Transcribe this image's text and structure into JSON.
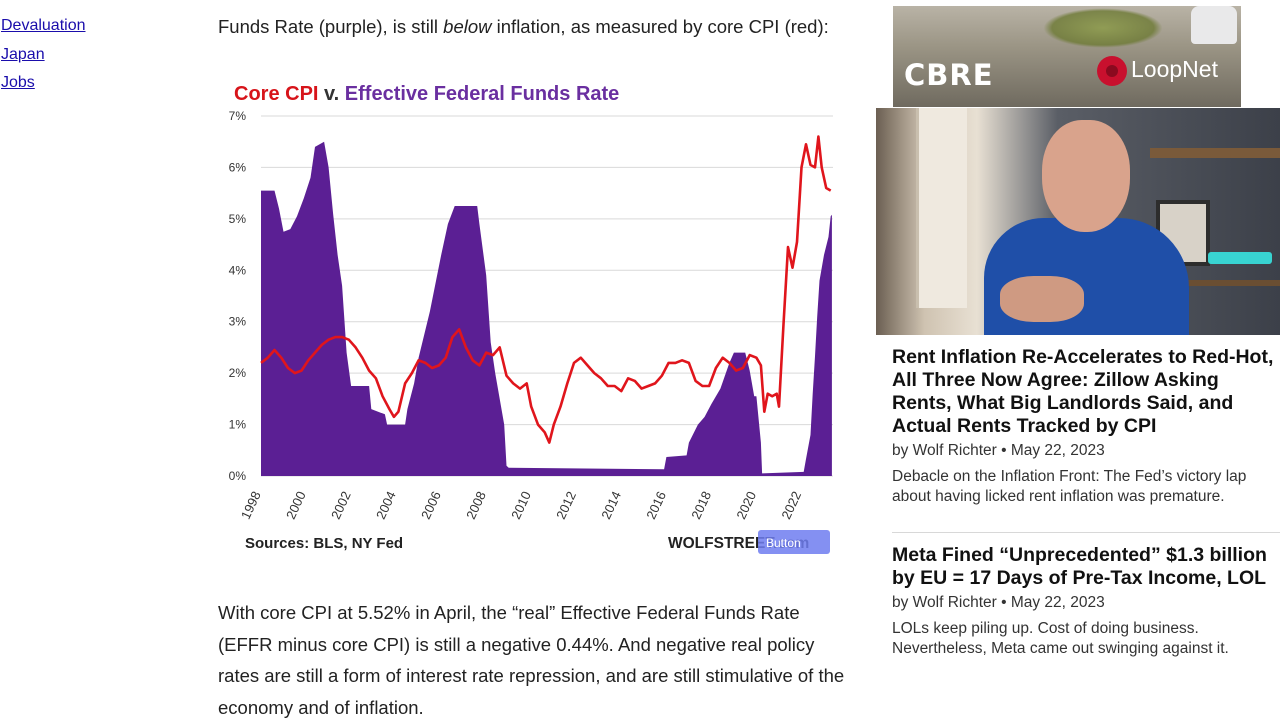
{
  "sidebar": {
    "links": [
      "Devaluation",
      "Japan",
      "Jobs"
    ]
  },
  "article": {
    "lead_before": "Funds Rate (purple), is still ",
    "lead_em": "below",
    "lead_after": " inflation, as measured by core CPI (red):",
    "paragraph": "With core CPI at 5.52% in April, the “real” Effective Federal Funds Rate (EFFR minus core CPI) is still a negative 0.44%. And negative real policy rates are still a form of interest rate repression, and are still stimulative of the economy and of inflation."
  },
  "chart_data": {
    "type": "line",
    "title_parts": [
      {
        "text": "Core CPI",
        "color": "#d7141a"
      },
      {
        "text": " v. ",
        "color": "#333333"
      },
      {
        "text": "Effective Federal Funds Rate",
        "color": "#6a2fa0"
      }
    ],
    "ylim": [
      0,
      7
    ],
    "yticks": [
      "0%",
      "1%",
      "2%",
      "3%",
      "4%",
      "5%",
      "6%",
      "7%"
    ],
    "xlim": [
      1998,
      2023.4
    ],
    "xticks": [
      "1998",
      "2000",
      "2002",
      "2004",
      "2006",
      "2008",
      "2010",
      "2012",
      "2014",
      "2016",
      "2018",
      "2020",
      "2022"
    ],
    "sources": "Sources: BLS, NY Fed",
    "brand": "WOLFSTREET.com",
    "button_label": "Button",
    "series": [
      {
        "name": "Effective Federal Funds Rate",
        "kind": "area",
        "color": "#5b1f94",
        "points": [
          [
            1998.0,
            5.55
          ],
          [
            1998.6,
            5.55
          ],
          [
            1998.8,
            5.2
          ],
          [
            1999.0,
            4.75
          ],
          [
            1999.3,
            4.8
          ],
          [
            1999.6,
            5.05
          ],
          [
            1999.9,
            5.4
          ],
          [
            2000.2,
            5.8
          ],
          [
            2000.4,
            6.4
          ],
          [
            2000.8,
            6.5
          ],
          [
            2001.0,
            6.0
          ],
          [
            2001.2,
            5.1
          ],
          [
            2001.4,
            4.3
          ],
          [
            2001.6,
            3.7
          ],
          [
            2001.8,
            2.4
          ],
          [
            2002.0,
            1.75
          ],
          [
            2002.8,
            1.75
          ],
          [
            2002.9,
            1.3
          ],
          [
            2003.5,
            1.2
          ],
          [
            2003.6,
            1.0
          ],
          [
            2004.4,
            1.0
          ],
          [
            2004.5,
            1.3
          ],
          [
            2004.8,
            1.8
          ],
          [
            2005.0,
            2.3
          ],
          [
            2005.5,
            3.2
          ],
          [
            2006.0,
            4.3
          ],
          [
            2006.3,
            4.9
          ],
          [
            2006.6,
            5.25
          ],
          [
            2007.6,
            5.25
          ],
          [
            2007.7,
            4.9
          ],
          [
            2008.0,
            3.9
          ],
          [
            2008.2,
            2.6
          ],
          [
            2008.4,
            2.0
          ],
          [
            2008.8,
            1.0
          ],
          [
            2008.9,
            0.2
          ],
          [
            2009.0,
            0.16
          ],
          [
            2015.9,
            0.13
          ],
          [
            2016.0,
            0.37
          ],
          [
            2016.9,
            0.4
          ],
          [
            2017.0,
            0.65
          ],
          [
            2017.4,
            1.0
          ],
          [
            2017.7,
            1.15
          ],
          [
            2018.0,
            1.4
          ],
          [
            2018.4,
            1.7
          ],
          [
            2018.8,
            2.2
          ],
          [
            2019.0,
            2.4
          ],
          [
            2019.5,
            2.4
          ],
          [
            2019.7,
            2.05
          ],
          [
            2019.9,
            1.55
          ],
          [
            2020.0,
            1.55
          ],
          [
            2020.2,
            0.65
          ],
          [
            2020.25,
            0.05
          ],
          [
            2022.1,
            0.08
          ],
          [
            2022.2,
            0.33
          ],
          [
            2022.4,
            0.8
          ],
          [
            2022.5,
            1.6
          ],
          [
            2022.6,
            2.33
          ],
          [
            2022.7,
            3.1
          ],
          [
            2022.8,
            3.8
          ],
          [
            2023.0,
            4.3
          ],
          [
            2023.2,
            4.65
          ],
          [
            2023.3,
            5.05
          ],
          [
            2023.35,
            5.08
          ]
        ]
      },
      {
        "name": "Core CPI",
        "kind": "line",
        "color": "#e0151c",
        "points": [
          [
            1998.0,
            2.2
          ],
          [
            1998.3,
            2.3
          ],
          [
            1998.6,
            2.45
          ],
          [
            1998.9,
            2.3
          ],
          [
            1999.2,
            2.1
          ],
          [
            1999.5,
            2.0
          ],
          [
            1999.8,
            2.05
          ],
          [
            2000.1,
            2.25
          ],
          [
            2000.4,
            2.4
          ],
          [
            2000.7,
            2.55
          ],
          [
            2001.0,
            2.65
          ],
          [
            2001.3,
            2.7
          ],
          [
            2001.6,
            2.7
          ],
          [
            2001.9,
            2.65
          ],
          [
            2002.2,
            2.5
          ],
          [
            2002.5,
            2.3
          ],
          [
            2002.8,
            2.05
          ],
          [
            2003.1,
            1.9
          ],
          [
            2003.4,
            1.55
          ],
          [
            2003.7,
            1.3
          ],
          [
            2003.9,
            1.15
          ],
          [
            2004.1,
            1.25
          ],
          [
            2004.4,
            1.8
          ],
          [
            2004.7,
            2.0
          ],
          [
            2005.0,
            2.25
          ],
          [
            2005.3,
            2.2
          ],
          [
            2005.6,
            2.1
          ],
          [
            2005.9,
            2.15
          ],
          [
            2006.2,
            2.3
          ],
          [
            2006.5,
            2.7
          ],
          [
            2006.8,
            2.85
          ],
          [
            2007.1,
            2.5
          ],
          [
            2007.4,
            2.25
          ],
          [
            2007.7,
            2.15
          ],
          [
            2008.0,
            2.4
          ],
          [
            2008.3,
            2.35
          ],
          [
            2008.6,
            2.5
          ],
          [
            2008.9,
            1.95
          ],
          [
            2009.2,
            1.8
          ],
          [
            2009.5,
            1.7
          ],
          [
            2009.8,
            1.8
          ],
          [
            2010.0,
            1.35
          ],
          [
            2010.3,
            1.0
          ],
          [
            2010.6,
            0.85
          ],
          [
            2010.8,
            0.65
          ],
          [
            2011.0,
            1.0
          ],
          [
            2011.3,
            1.35
          ],
          [
            2011.6,
            1.8
          ],
          [
            2011.9,
            2.2
          ],
          [
            2012.2,
            2.3
          ],
          [
            2012.5,
            2.15
          ],
          [
            2012.8,
            2.0
          ],
          [
            2013.1,
            1.9
          ],
          [
            2013.4,
            1.75
          ],
          [
            2013.7,
            1.75
          ],
          [
            2014.0,
            1.65
          ],
          [
            2014.3,
            1.9
          ],
          [
            2014.6,
            1.85
          ],
          [
            2014.9,
            1.7
          ],
          [
            2015.2,
            1.75
          ],
          [
            2015.5,
            1.8
          ],
          [
            2015.8,
            1.95
          ],
          [
            2016.1,
            2.2
          ],
          [
            2016.4,
            2.2
          ],
          [
            2016.7,
            2.25
          ],
          [
            2017.0,
            2.2
          ],
          [
            2017.3,
            1.85
          ],
          [
            2017.6,
            1.75
          ],
          [
            2017.9,
            1.75
          ],
          [
            2018.2,
            2.1
          ],
          [
            2018.5,
            2.3
          ],
          [
            2018.8,
            2.2
          ],
          [
            2019.1,
            2.05
          ],
          [
            2019.4,
            2.1
          ],
          [
            2019.7,
            2.35
          ],
          [
            2020.0,
            2.3
          ],
          [
            2020.2,
            2.15
          ],
          [
            2020.35,
            1.25
          ],
          [
            2020.5,
            1.6
          ],
          [
            2020.7,
            1.55
          ],
          [
            2020.9,
            1.6
          ],
          [
            2021.0,
            1.35
          ],
          [
            2021.2,
            2.95
          ],
          [
            2021.4,
            4.45
          ],
          [
            2021.6,
            4.05
          ],
          [
            2021.8,
            4.55
          ],
          [
            2022.0,
            6.0
          ],
          [
            2022.2,
            6.45
          ],
          [
            2022.4,
            6.05
          ],
          [
            2022.6,
            6.0
          ],
          [
            2022.75,
            6.6
          ],
          [
            2022.9,
            6.0
          ],
          [
            2023.1,
            5.6
          ],
          [
            2023.3,
            5.55
          ]
        ]
      }
    ]
  },
  "ad": {
    "brand1": "CBRE",
    "brand2": "LoopNet"
  },
  "posts": [
    {
      "title": "Rent Inflation Re-Accelerates to Red-Hot, All Three Now Agree: Zillow Asking Rents, What Big Landlords Said, and Actual Rents Tracked by CPI",
      "meta": "by Wolf Richter • May 22, 2023",
      "excerpt_1": "Debacle on the Inflation Front: The Fed’s victory lap",
      "excerpt_2": "about having licked rent inflation was premature."
    },
    {
      "title": "Meta Fined “Unprecedented” $1.3 billion by EU = 17 Days of Pre-Tax Income, LOL",
      "meta": "by Wolf Richter • May 22, 2023",
      "excerpt_1": "LOLs keep piling up. Cost of doing business.",
      "excerpt_2": "Nevertheless, Meta came out swinging against it."
    }
  ]
}
